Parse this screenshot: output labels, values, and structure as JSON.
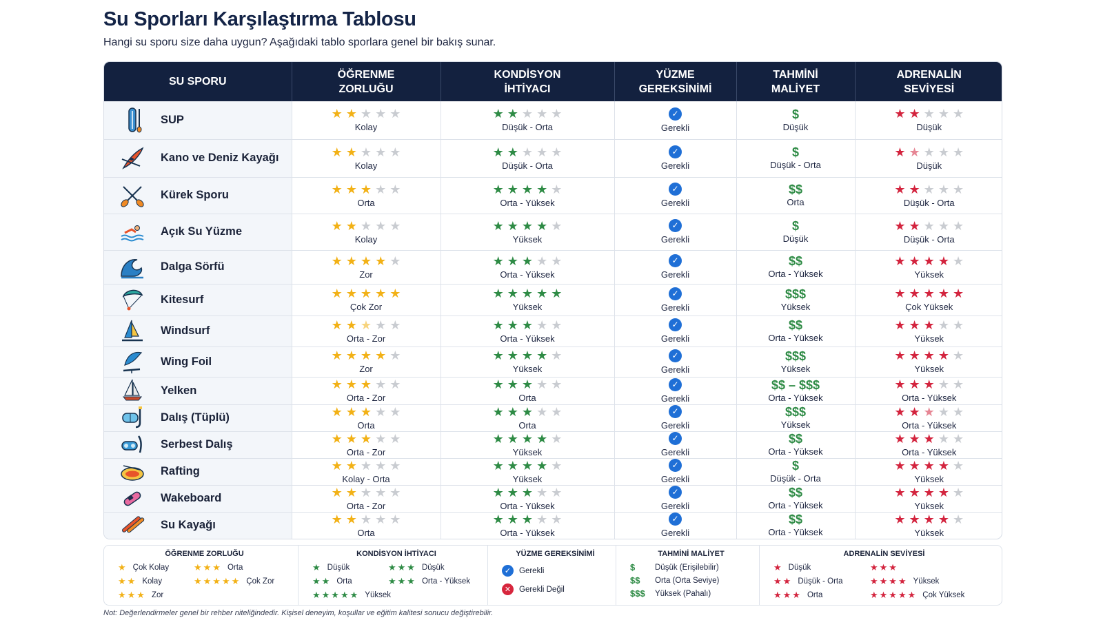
{
  "page": {
    "title": "Su Sporları Karşılaştırma Tablosu",
    "subtitle": "Hangi su sporu size daha uygun? Aşağıdaki tablo sporlara genel bir bakış sunar."
  },
  "colors": {
    "header_bg": "#13213f",
    "learning_star": "#f2b116",
    "fitness_star": "#2e8b45",
    "adrenaline_star": "#d3243e",
    "empty_star": "#c9ccd1",
    "check": "#1f6fd6",
    "cost": "#2e8b45"
  },
  "table": {
    "headers": [
      "SU SPORU",
      "ÖĞRENME ZORLUĞU",
      "KONDİSYON İHTİYACI",
      "YÜZME GEREKSİNİMİ",
      "TAHMİNİ MALİYET",
      "ADRENALİN SEVİYESİ"
    ],
    "rows": [
      {
        "name": "SUP",
        "icon": "sup-board-icon",
        "learning_stars": 2,
        "learning": "Kolay",
        "fitness_stars": 2,
        "fitness": "Düşük - Orta",
        "swim": "Gerekli",
        "cost_sign": "$",
        "cost": "Düşük",
        "adrenaline_stars": 2,
        "adrenaline": "Düşük"
      },
      {
        "name": "Kano ve Deniz Kayağı",
        "icon": "kayak-icon",
        "learning_stars": 2,
        "learning": "Kolay",
        "fitness_stars": 2,
        "fitness": "Düşük - Orta",
        "swim": "Gerekli",
        "cost_sign": "$",
        "cost": "Düşük - Orta",
        "adrenaline_stars": 1.5,
        "adrenaline": "Düşük"
      },
      {
        "name": "Kürek Sporu",
        "icon": "crossed-oars-icon",
        "learning_stars": 3,
        "learning": "Orta",
        "fitness_stars": 4,
        "fitness": "Orta - Yüksek",
        "swim": "Gerekli",
        "cost_sign": "$$",
        "cost": "Orta",
        "adrenaline_stars": 2,
        "adrenaline": "Düşük - Orta"
      },
      {
        "name": "Açık Su Yüzme",
        "icon": "swimmer-icon",
        "learning_stars": 2,
        "learning": "Kolay",
        "fitness_stars": 4,
        "fitness": "Yüksek",
        "swim": "Gerekli",
        "cost_sign": "$",
        "cost": "Düşük",
        "adrenaline_stars": 2,
        "adrenaline": "Düşük - Orta"
      },
      {
        "name": "Dalga Sörfü",
        "icon": "wave-icon",
        "learning_stars": 4,
        "learning": "Zor",
        "fitness_stars": 3,
        "fitness": "Orta - Yüksek",
        "swim": "Gerekli",
        "cost_sign": "$$",
        "cost": "Orta - Yüksek",
        "adrenaline_stars": 4,
        "adrenaline": "Yüksek"
      },
      {
        "name": "Kitesurf",
        "icon": "kite-icon",
        "learning_stars": 5,
        "learning": "Çok Zor",
        "fitness_stars": 5,
        "fitness": "Yüksek",
        "swim": "Gerekli",
        "cost_sign": "$$$",
        "cost": "Yüksek",
        "adrenaline_stars": 5,
        "adrenaline": "Çok Yüksek"
      },
      {
        "name": "Windsurf",
        "icon": "windsurf-icon",
        "learning_stars": 2.5,
        "learning": "Orta - Zor",
        "fitness_stars": 3,
        "fitness": "Orta - Yüksek",
        "swim": "Gerekli",
        "cost_sign": "$$",
        "cost": "Orta - Yüksek",
        "adrenaline_stars": 3,
        "adrenaline": "Yüksek"
      },
      {
        "name": "Wing Foil",
        "icon": "wing-foil-icon",
        "learning_stars": 4,
        "learning": "Zor",
        "fitness_stars": 4,
        "fitness": "Yüksek",
        "swim": "Gerekli",
        "cost_sign": "$$$",
        "cost": "Yüksek",
        "adrenaline_stars": 4,
        "adrenaline": "Yüksek"
      },
      {
        "name": "Yelken",
        "icon": "sailboat-icon",
        "learning_stars": 3,
        "learning": "Orta - Zor",
        "fitness_stars": 3,
        "fitness": "Orta",
        "swim": "Gerekli",
        "cost_sign": "$$ – $$$",
        "cost": "Orta - Yüksek",
        "adrenaline_stars": 3,
        "adrenaline": "Orta - Yüksek"
      },
      {
        "name": "Dalış (Tüplü)",
        "icon": "scuba-mask-icon",
        "learning_stars": 3,
        "learning": "Orta",
        "fitness_stars": 3,
        "fitness": "Orta",
        "swim": "Gerekli",
        "cost_sign": "$$$",
        "cost": "Yüksek",
        "adrenaline_stars": 2.5,
        "adrenaline": "Orta - Yüksek"
      },
      {
        "name": "Serbest Dalış",
        "icon": "snorkel-mask-icon",
        "learning_stars": 3,
        "learning": "Orta - Zor",
        "fitness_stars": 4,
        "fitness": "Yüksek",
        "swim": "Gerekli",
        "cost_sign": "$$",
        "cost": "Orta - Yüksek",
        "adrenaline_stars": 3,
        "adrenaline": "Orta - Yüksek"
      },
      {
        "name": "Rafting",
        "icon": "raft-icon",
        "learning_stars": 2,
        "learning": "Kolay - Orta",
        "fitness_stars": 4,
        "fitness": "Yüksek",
        "swim": "Gerekli",
        "cost_sign": "$",
        "cost": "Düşük - Orta",
        "adrenaline_stars": 4,
        "adrenaline": "Yüksek"
      },
      {
        "name": "Wakeboard",
        "icon": "wakeboard-icon",
        "learning_stars": 2,
        "learning": "Orta - Zor",
        "fitness_stars": 3,
        "fitness": "Orta - Yüksek",
        "swim": "Gerekli",
        "cost_sign": "$$",
        "cost": "Orta - Yüksek",
        "adrenaline_stars": 4,
        "adrenaline": "Yüksek"
      },
      {
        "name": "Su Kayağı",
        "icon": "water-skis-icon",
        "learning_stars": 2,
        "learning": "Orta",
        "fitness_stars": 3,
        "fitness": "Orta - Yüksek",
        "swim": "Gerekli",
        "cost_sign": "$$",
        "cost": "Orta - Yüksek",
        "adrenaline_stars": 4,
        "adrenaline": "Yüksek"
      }
    ]
  },
  "legend": {
    "learning": {
      "title": "ÖĞRENME ZORLUĞU",
      "items": [
        {
          "stars": 1,
          "label": "Çok Kolay"
        },
        {
          "stars": 3,
          "label": "Orta"
        },
        {
          "stars": 2,
          "label": "Kolay"
        },
        {
          "stars": 5,
          "label": "Çok Zor"
        },
        {
          "stars": 3,
          "label": "Zor"
        }
      ]
    },
    "fitness": {
      "title": "KONDİSYON İHTİYACI",
      "items": [
        {
          "stars": 1,
          "label": "Düşük"
        },
        {
          "stars": 3,
          "label": "Düşük"
        },
        {
          "stars": 2,
          "label": "Orta"
        },
        {
          "stars": 3,
          "label": "Orta - Yüksek"
        },
        {
          "stars": 5,
          "label": "Yüksek"
        }
      ]
    },
    "swim": {
      "title": "YÜZME GEREKSİNİMİ",
      "required": "Gerekli",
      "not_required": "Gerekli Değil"
    },
    "cost": {
      "title": "TAHMİNİ MALİYET",
      "items": [
        {
          "sign": "$",
          "label": "Düşük (Erişilebilir)"
        },
        {
          "sign": "$$",
          "label": "Orta (Orta Seviye)"
        },
        {
          "sign": "$$$",
          "label": "Yüksek (Pahalı)"
        }
      ]
    },
    "adrenaline": {
      "title": "ADRENALİN SEVİYESİ",
      "items": [
        {
          "stars": 1,
          "label": "Düşük"
        },
        {
          "stars": 3,
          "label": ""
        },
        {
          "stars": 2,
          "label": "Düşük - Orta"
        },
        {
          "stars": 4,
          "label": "Yüksek"
        },
        {
          "stars": 3,
          "label": "Orta"
        },
        {
          "stars": 5,
          "label": "Çok Yüksek"
        }
      ]
    }
  },
  "footnote": "Not: Değerlendirmeler genel bir rehber niteliğindedir. Kişisel deneyim, koşullar ve eğitim kalitesi sonucu değiştirebilir."
}
